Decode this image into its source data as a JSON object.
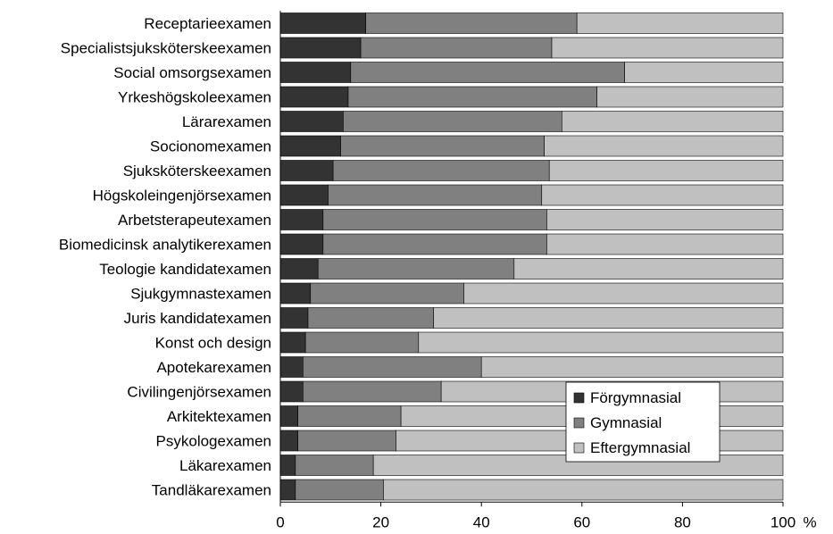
{
  "chart_data": {
    "type": "bar",
    "orientation": "horizontal",
    "stacked": true,
    "categories": [
      "Receptarieexamen",
      "Specialistsjuksköterskeexamen",
      "Social omsorgsexamen",
      "Yrkeshögskoleexamen",
      "Lärarexamen",
      "Socionomexamen",
      "Sjuksköterskeexamen",
      "Högskoleingenjörsexamen",
      "Arbetsterapeutexamen",
      "Biomedicinsk analytikerexamen",
      "Teologie kandidatexamen",
      "Sjukgymnastexamen",
      "Juris kandidatexamen",
      "Konst och design",
      "Apotekarexamen",
      "Civilingenjörsexamen",
      "Arkitektexamen",
      "Psykologexamen",
      "Läkarexamen",
      "Tandläkarexamen"
    ],
    "series": [
      {
        "name": "Förgymnasial",
        "color": "#333333",
        "values": [
          17,
          16,
          14,
          13.5,
          12.5,
          12,
          10.5,
          9.5,
          8.5,
          8.5,
          7.5,
          6,
          5.5,
          5,
          4.5,
          4.5,
          3.5,
          3.5,
          3,
          3
        ]
      },
      {
        "name": "Gymnasial",
        "color": "#808080",
        "values": [
          42,
          38,
          54.5,
          49.5,
          43.5,
          40.5,
          43,
          42.5,
          44.5,
          44.5,
          39,
          30.5,
          25,
          22.5,
          35.5,
          27.5,
          20.5,
          19.5,
          15.5,
          17.5
        ]
      },
      {
        "name": "Eftergymnasial",
        "color": "#c0c0c0",
        "values": [
          41,
          46,
          31.5,
          37,
          44,
          47.5,
          46.5,
          48,
          47,
          47,
          53.5,
          63.5,
          69.5,
          72.5,
          60,
          68,
          76,
          77,
          81.5,
          79.5
        ]
      }
    ],
    "xlim": [
      0,
      100
    ],
    "x_ticks": [
      "0",
      "20",
      "40",
      "60",
      "80",
      "100"
    ],
    "x_unit": "%",
    "legend_position": "bottom-right, inside plot",
    "grid": false
  }
}
